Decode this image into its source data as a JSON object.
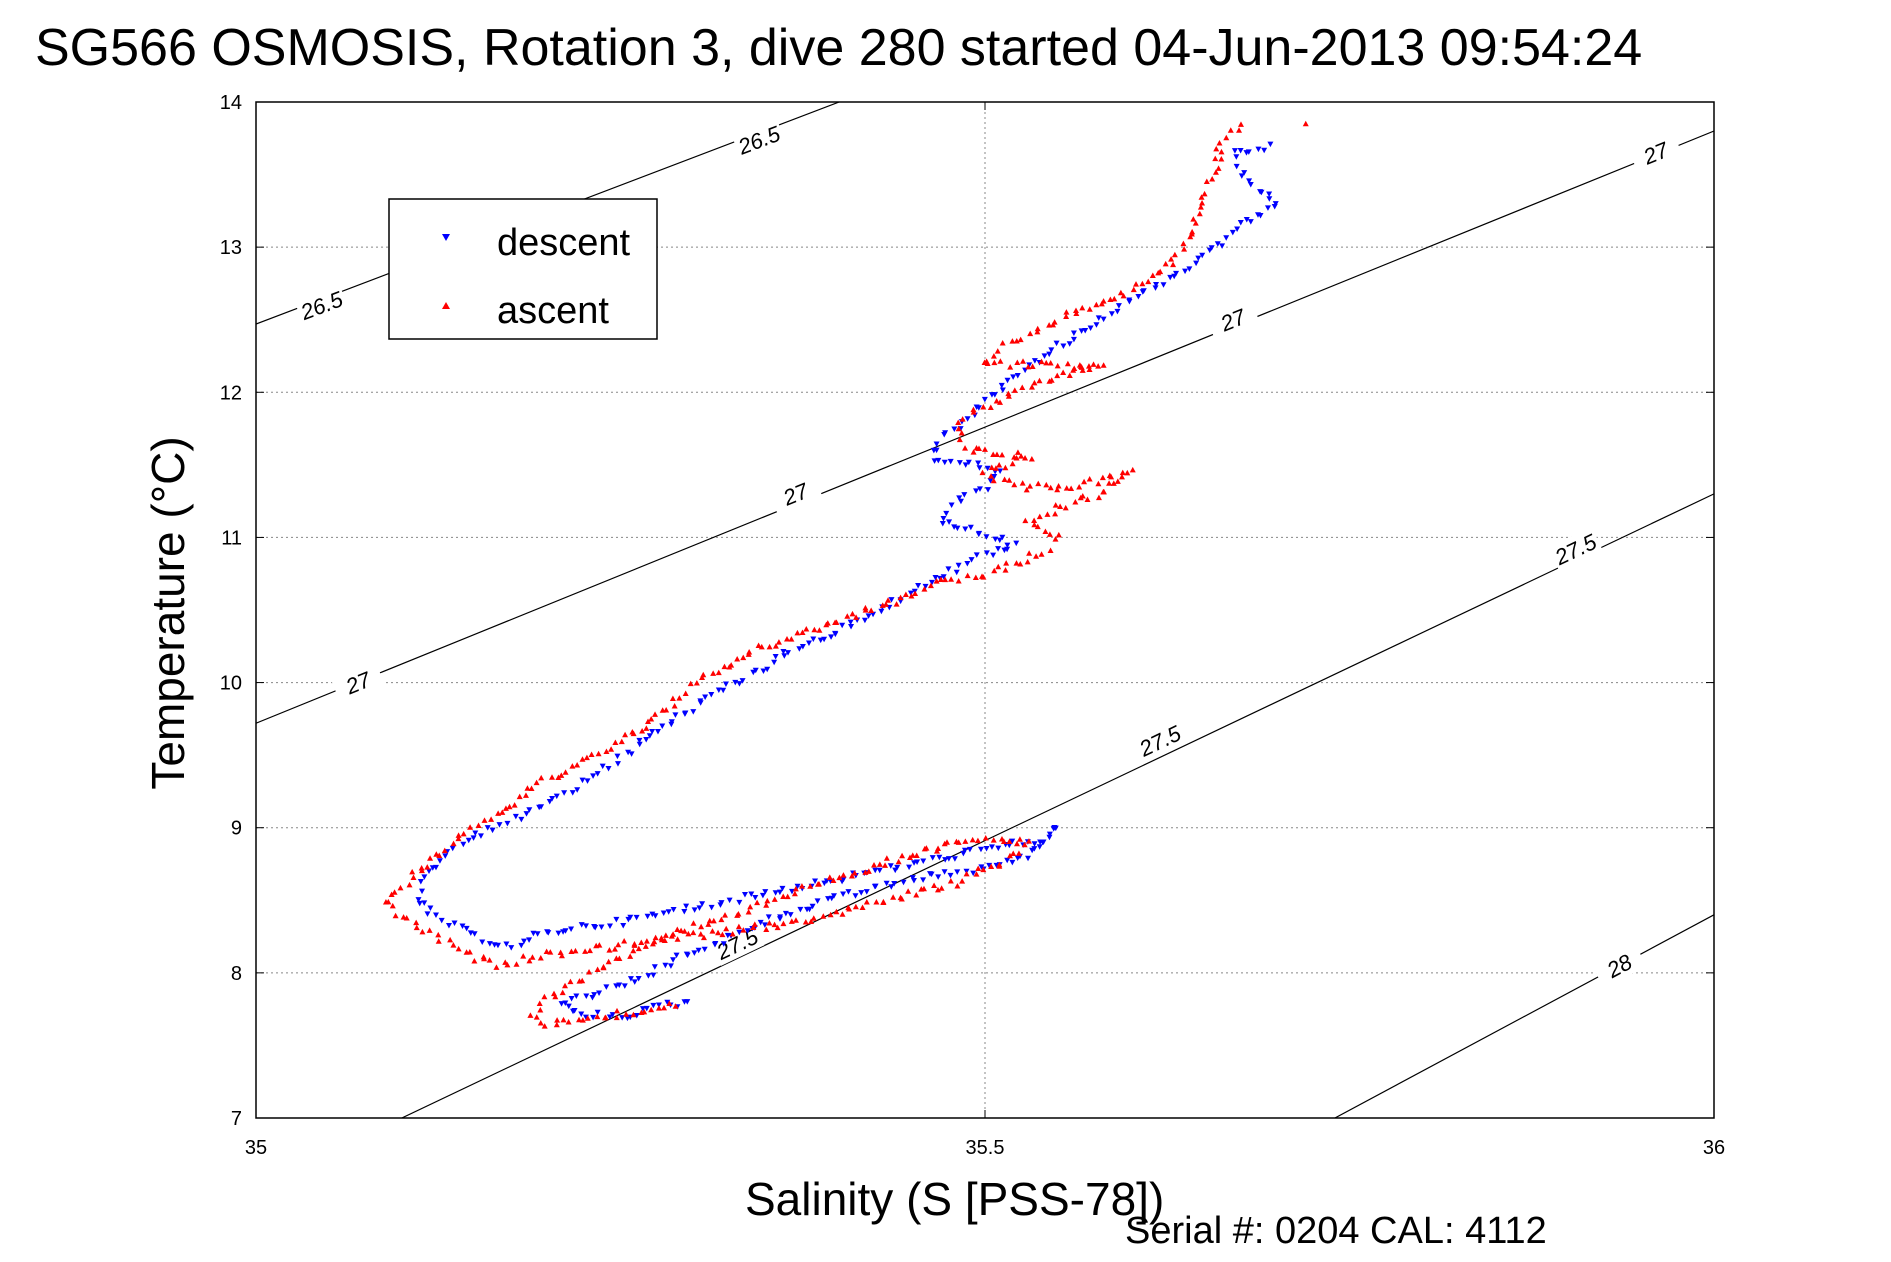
{
  "chart_data": {
    "type": "scatter",
    "title": "SG566 OSMOSIS, Rotation 3, dive 280 started 04-Jun-2013 09:54:24",
    "xlabel": "Salinity (S [PSS-78])",
    "ylabel": "Temperature (°C)",
    "xlim": [
      35,
      36
    ],
    "ylim": [
      7,
      14
    ],
    "xticks": [
      35,
      35.5,
      36
    ],
    "xtick_labels": [
      "35",
      "35.5",
      "36"
    ],
    "yticks": [
      7,
      8,
      9,
      10,
      11,
      12,
      13,
      14
    ],
    "ytick_labels": [
      "7",
      "8",
      "9",
      "10",
      "11",
      "12",
      "13",
      "14"
    ],
    "grid": true,
    "legend": {
      "position": "top-left"
    },
    "density_contours": [
      {
        "level": "26.5",
        "line": [
          [
            35.0,
            12.47
          ],
          [
            35.4,
            14.0
          ]
        ],
        "labels": [
          {
            "x": 35.045,
            "y": 12.6
          },
          {
            "x": 35.345,
            "y": 13.74
          }
        ]
      },
      {
        "level": "27",
        "line": [
          [
            35.0,
            9.72
          ],
          [
            36.0,
            13.8
          ]
        ],
        "labels": [
          {
            "x": 35.07,
            "y": 10.0
          },
          {
            "x": 35.37,
            "y": 11.3
          },
          {
            "x": 35.67,
            "y": 12.5
          },
          {
            "x": 35.96,
            "y": 13.65
          }
        ]
      },
      {
        "level": "27.5",
        "line": [
          [
            35.1,
            7.0
          ],
          [
            36.0,
            11.3
          ]
        ],
        "labels": [
          {
            "x": 35.33,
            "y": 8.2
          },
          {
            "x": 35.62,
            "y": 9.6
          },
          {
            "x": 35.905,
            "y": 10.92
          }
        ]
      },
      {
        "level": "28",
        "line": [
          [
            35.74,
            7.0
          ],
          [
            36.0,
            8.4
          ]
        ],
        "labels": [
          {
            "x": 35.935,
            "y": 8.05
          }
        ]
      }
    ],
    "series": [
      {
        "name": "descent",
        "color": "#0000ff",
        "marker": "triangle-down",
        "path": [
          [
            35.695,
            13.7
          ],
          [
            35.67,
            13.65
          ],
          [
            35.68,
            13.45
          ],
          [
            35.7,
            13.3
          ],
          [
            35.675,
            13.15
          ],
          [
            35.66,
            13.0
          ],
          [
            35.63,
            12.8
          ],
          [
            35.6,
            12.65
          ],
          [
            35.58,
            12.5
          ],
          [
            35.56,
            12.38
          ],
          [
            35.54,
            12.25
          ],
          [
            35.52,
            12.1
          ],
          [
            35.5,
            11.95
          ],
          [
            35.49,
            11.8
          ],
          [
            35.47,
            11.7
          ],
          [
            35.465,
            11.55
          ],
          [
            35.49,
            11.5
          ],
          [
            35.51,
            11.45
          ],
          [
            35.5,
            11.35
          ],
          [
            35.48,
            11.25
          ],
          [
            35.47,
            11.12
          ],
          [
            35.49,
            11.05
          ],
          [
            35.51,
            11.0
          ],
          [
            35.52,
            10.95
          ],
          [
            35.5,
            10.88
          ],
          [
            35.48,
            10.78
          ],
          [
            35.455,
            10.65
          ],
          [
            35.43,
            10.52
          ],
          [
            35.41,
            10.4
          ],
          [
            35.385,
            10.3
          ],
          [
            35.36,
            10.18
          ],
          [
            35.34,
            10.05
          ],
          [
            35.32,
            9.95
          ],
          [
            35.3,
            9.82
          ],
          [
            35.28,
            9.7
          ],
          [
            35.265,
            9.58
          ],
          [
            35.25,
            9.48
          ],
          [
            35.235,
            9.38
          ],
          [
            35.22,
            9.28
          ],
          [
            35.2,
            9.18
          ],
          [
            35.18,
            9.08
          ],
          [
            35.16,
            8.98
          ],
          [
            35.14,
            8.88
          ],
          [
            35.125,
            8.78
          ],
          [
            35.115,
            8.65
          ],
          [
            35.11,
            8.52
          ],
          [
            35.12,
            8.4
          ],
          [
            35.14,
            8.3
          ],
          [
            35.16,
            8.22
          ],
          [
            35.18,
            8.18
          ],
          [
            35.19,
            8.25
          ],
          [
            35.21,
            8.3
          ],
          [
            35.25,
            8.35
          ],
          [
            35.3,
            8.45
          ],
          [
            35.35,
            8.55
          ],
          [
            35.4,
            8.65
          ],
          [
            35.45,
            8.75
          ],
          [
            35.5,
            8.85
          ],
          [
            35.54,
            8.92
          ],
          [
            35.55,
            9.0
          ],
          [
            35.53,
            8.8
          ],
          [
            35.5,
            8.72
          ],
          [
            35.47,
            8.68
          ],
          [
            35.44,
            8.62
          ],
          [
            35.41,
            8.55
          ],
          [
            35.38,
            8.45
          ],
          [
            35.35,
            8.35
          ],
          [
            35.32,
            8.22
          ],
          [
            35.29,
            8.1
          ],
          [
            35.26,
            7.95
          ],
          [
            35.23,
            7.85
          ],
          [
            35.21,
            7.78
          ],
          [
            35.22,
            7.72
          ],
          [
            35.245,
            7.7
          ],
          [
            35.26,
            7.72
          ],
          [
            35.28,
            7.78
          ],
          [
            35.3,
            7.8
          ]
        ]
      },
      {
        "name": "ascent",
        "color": "#ff0000",
        "marker": "triangle-up",
        "path": [
          [
            35.675,
            13.85
          ],
          [
            35.66,
            13.7
          ],
          [
            35.66,
            13.55
          ],
          [
            35.65,
            13.35
          ],
          [
            35.645,
            13.2
          ],
          [
            35.64,
            13.05
          ],
          [
            35.63,
            12.92
          ],
          [
            35.615,
            12.8
          ],
          [
            35.6,
            12.7
          ],
          [
            35.575,
            12.6
          ],
          [
            35.55,
            12.5
          ],
          [
            35.53,
            12.4
          ],
          [
            35.51,
            12.3
          ],
          [
            35.5,
            12.2
          ],
          [
            35.58,
            12.18
          ],
          [
            35.56,
            12.15
          ],
          [
            35.55,
            12.1
          ],
          [
            35.53,
            12.05
          ],
          [
            35.51,
            11.95
          ],
          [
            35.49,
            11.85
          ],
          [
            35.48,
            11.75
          ],
          [
            35.49,
            11.6
          ],
          [
            35.51,
            11.58
          ],
          [
            35.53,
            11.55
          ],
          [
            35.5,
            11.45
          ],
          [
            35.52,
            11.35
          ],
          [
            35.56,
            11.35
          ],
          [
            35.6,
            11.45
          ],
          [
            35.58,
            11.3
          ],
          [
            35.55,
            11.2
          ],
          [
            35.53,
            11.1
          ],
          [
            35.55,
            11.0
          ],
          [
            35.54,
            10.9
          ],
          [
            35.52,
            10.82
          ],
          [
            35.5,
            10.75
          ],
          [
            35.47,
            10.7
          ],
          [
            35.45,
            10.6
          ],
          [
            35.42,
            10.5
          ],
          [
            35.4,
            10.42
          ],
          [
            35.37,
            10.32
          ],
          [
            35.34,
            10.22
          ],
          [
            35.32,
            10.1
          ],
          [
            35.3,
            10.0
          ],
          [
            35.285,
            9.85
          ],
          [
            35.27,
            9.72
          ],
          [
            35.25,
            9.6
          ],
          [
            35.23,
            9.5
          ],
          [
            35.21,
            9.38
          ],
          [
            35.19,
            9.28
          ],
          [
            35.175,
            9.15
          ],
          [
            35.16,
            9.05
          ],
          [
            35.14,
            8.95
          ],
          [
            35.13,
            8.85
          ],
          [
            35.115,
            8.72
          ],
          [
            35.1,
            8.6
          ],
          [
            35.09,
            8.5
          ],
          [
            35.1,
            8.38
          ],
          [
            35.12,
            8.28
          ],
          [
            35.135,
            8.18
          ],
          [
            35.15,
            8.1
          ],
          [
            35.17,
            8.05
          ],
          [
            35.19,
            8.12
          ],
          [
            35.22,
            8.15
          ],
          [
            35.27,
            8.22
          ],
          [
            35.32,
            8.28
          ],
          [
            35.36,
            8.33
          ],
          [
            35.4,
            8.42
          ],
          [
            35.44,
            8.52
          ],
          [
            35.48,
            8.62
          ],
          [
            35.5,
            8.72
          ],
          [
            35.52,
            8.8
          ],
          [
            35.53,
            8.9
          ],
          [
            35.51,
            8.92
          ],
          [
            35.48,
            8.9
          ],
          [
            35.45,
            8.82
          ],
          [
            35.42,
            8.72
          ],
          [
            35.38,
            8.6
          ],
          [
            35.34,
            8.45
          ],
          [
            35.3,
            8.32
          ],
          [
            35.27,
            8.2
          ],
          [
            35.24,
            8.05
          ],
          [
            35.22,
            7.95
          ],
          [
            35.2,
            7.82
          ],
          [
            35.19,
            7.72
          ],
          [
            35.2,
            7.65
          ],
          [
            35.225,
            7.68
          ],
          [
            35.25,
            7.72
          ],
          [
            35.275,
            7.75
          ],
          [
            35.29,
            7.8
          ],
          [
            35.72,
            13.85
          ]
        ]
      }
    ]
  },
  "footer": {
    "serial_text": "Serial #: 0204  CAL: 4112"
  }
}
